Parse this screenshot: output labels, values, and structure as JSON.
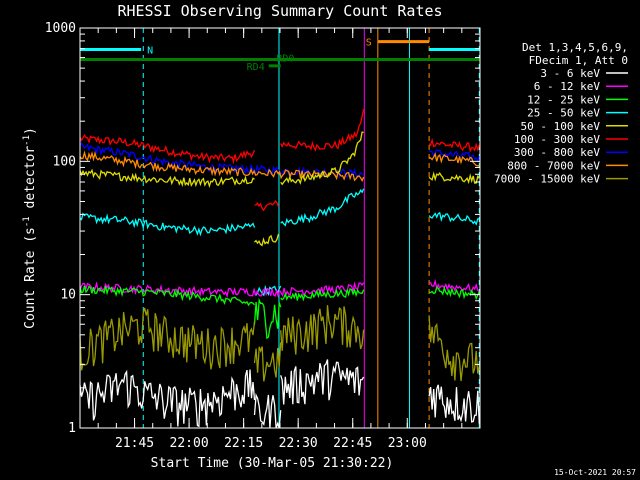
{
  "chart_data": {
    "type": "line",
    "title": "RHESSI Observing Summary Count Rates",
    "xlabel": "Start Time (30-Mar-05 21:30:22)",
    "ylabel_main": "Count Rate (s",
    "ylabel_sup1": "-1",
    "ylabel_mid": " detector",
    "ylabel_sup2": "-1",
    "ylabel_end": ")",
    "y_scale": "log",
    "ylim": [
      1,
      1000
    ],
    "xlim": [
      21.5,
      23.3333
    ],
    "yticks": [
      {
        "value": 1,
        "label": "1"
      },
      {
        "value": 10,
        "label": "10"
      },
      {
        "value": 100,
        "label": "100"
      },
      {
        "value": 1000,
        "label": "1000"
      }
    ],
    "xticks": [
      {
        "value": 21.75,
        "label": "21:45"
      },
      {
        "value": 22.0,
        "label": "22:00"
      },
      {
        "value": 22.25,
        "label": "22:15"
      },
      {
        "value": 22.5,
        "label": "22:30"
      },
      {
        "value": 22.75,
        "label": "22:45"
      },
      {
        "value": 23.0,
        "label": "23:00"
      }
    ],
    "legend_header": [
      "Det 1,3,4,5,6,9,",
      "FDecim 1, Att 0"
    ],
    "legend_position": "right",
    "timestamp": "15-Oct-2021 20:57",
    "series": [
      {
        "name": "3 - 6 keV",
        "color": "#ffffff"
      },
      {
        "name": "6 - 12 keV",
        "color": "#ff00ff"
      },
      {
        "name": "12 - 25 keV",
        "color": "#00ff00"
      },
      {
        "name": "25 - 50 keV",
        "color": "#00ffff"
      },
      {
        "name": "50 - 100 keV",
        "color": "#dddd00"
      },
      {
        "name": "100 - 300 keV",
        "color": "#ff0000"
      },
      {
        "name": "300 - 800 keV",
        "color": "#0000ff"
      },
      {
        "name": "800 - 7000 keV",
        "color": "#ff8c00"
      },
      {
        "name": "7000 - 15000 keV",
        "color": "#999900"
      }
    ],
    "curves": [
      {
        "color": "#ff0000",
        "segments": [
          {
            "x": [
              21.5,
              21.7,
              21.9,
              22.05,
              22.2,
              22.3
            ],
            "y": [
              148,
              140,
              120,
              108,
              105,
              118
            ]
          },
          {
            "x": [
              22.3,
              22.41
            ],
            "y": [
              45,
              48
            ]
          },
          {
            "x": [
              22.42,
              22.55,
              22.68,
              22.77,
              22.79,
              22.8
            ],
            "y": [
              135,
              130,
              132,
              160,
              200,
              240
            ]
          },
          {
            "x": [
              23.1,
              23.2,
              23.3,
              23.33
            ],
            "y": [
              140,
              132,
              128,
              125
            ]
          }
        ]
      },
      {
        "color": "#0000ff",
        "segments": [
          {
            "x": [
              21.5,
              21.7,
              21.9,
              22.1,
              22.3,
              22.5,
              22.7,
              22.8
            ],
            "y": [
              128,
              115,
              98,
              90,
              87,
              84,
              82,
              80
            ]
          },
          {
            "x": [
              23.1,
              23.2,
              23.3,
              23.33
            ],
            "y": [
              118,
              112,
              108,
              105
            ]
          }
        ]
      },
      {
        "color": "#ff8c00",
        "segments": [
          {
            "x": [
              21.5,
              21.7,
              21.9,
              22.1,
              22.3,
              22.5,
              22.7,
              22.8
            ],
            "y": [
              112,
              100,
              90,
              85,
              82,
              80,
              78,
              76
            ]
          },
          {
            "x": [
              23.1,
              23.2,
              23.3,
              23.33
            ],
            "y": [
              108,
              104,
              100,
              98
            ]
          }
        ]
      },
      {
        "color": "#dddd00",
        "segments": [
          {
            "x": [
              21.5,
              21.7,
              21.9,
              22.1,
              22.3
            ],
            "y": [
              82,
              77,
              72,
              70,
              74
            ]
          },
          {
            "x": [
              22.3,
              22.41
            ],
            "y": [
              24,
              27
            ]
          },
          {
            "x": [
              22.42,
              22.55,
              22.68,
              22.75,
              22.79,
              22.8
            ],
            "y": [
              70,
              75,
              85,
              110,
              150,
              170
            ]
          },
          {
            "x": [
              23.1,
              23.2,
              23.3,
              23.33
            ],
            "y": [
              78,
              76,
              74,
              73
            ]
          }
        ]
      },
      {
        "color": "#00ffff",
        "segments": [
          {
            "x": [
              21.5,
              21.7,
              21.9,
              22.1,
              22.3
            ],
            "y": [
              38,
              36,
              32,
              30,
              33
            ]
          },
          {
            "x": [
              22.3,
              22.42
            ],
            "y": [
              10.5,
              11
            ]
          },
          {
            "x": [
              22.42,
              22.55,
              22.68,
              22.75,
              22.79,
              22.8
            ],
            "y": [
              34,
              38,
              45,
              55,
              58,
              60
            ]
          },
          {
            "x": [
              23.1,
              23.2,
              23.3,
              23.33
            ],
            "y": [
              40,
              38,
              36,
              35
            ]
          }
        ]
      },
      {
        "color": "#ff00ff",
        "segments": [
          {
            "x": [
              21.5,
              21.8,
              22.1,
              22.4,
              22.7,
              22.8
            ],
            "y": [
              11.5,
              11,
              10.5,
              10.5,
              11,
              11.5
            ]
          },
          {
            "x": [
              23.1,
              23.2,
              23.33
            ],
            "y": [
              12,
              11.5,
              11
            ]
          }
        ]
      },
      {
        "color": "#00ff00",
        "segments": [
          {
            "x": [
              21.5,
              21.8,
              22.1,
              22.3
            ],
            "y": [
              11,
              10.5,
              9.5,
              8.5
            ]
          },
          {
            "x": [
              22.3,
              22.42
            ],
            "y": [
              7,
              7.5
            ]
          },
          {
            "x": [
              22.42,
              22.6,
              22.8
            ],
            "y": [
              9.5,
              10,
              10.5
            ]
          },
          {
            "x": [
              23.1,
              23.2,
              23.33
            ],
            "y": [
              11,
              10.5,
              10
            ]
          }
        ]
      },
      {
        "color": "#999900",
        "segments": [
          {
            "x": [
              21.5,
              21.6,
              21.7,
              21.8,
              21.9,
              22.0,
              22.1,
              22.2,
              22.3
            ],
            "y": [
              3.8,
              4.6,
              5.5,
              6,
              5,
              4.5,
              4.2,
              4.5,
              4.8
            ]
          },
          {
            "x": [
              22.3,
              22.42
            ],
            "y": [
              3,
              3.3
            ]
          },
          {
            "x": [
              22.42,
              22.55,
              22.65,
              22.8
            ],
            "y": [
              5,
              5.5,
              6.5,
              5.5
            ]
          },
          {
            "x": [
              23.1,
              23.2,
              23.33
            ],
            "y": [
              5.5,
              3.5,
              3.2
            ]
          }
        ]
      },
      {
        "color": "#ffffff",
        "segments": [
          {
            "x": [
              21.5,
              21.6,
              21.7,
              21.8,
              21.9,
              22.0,
              22.1,
              22.2,
              22.3
            ],
            "y": [
              1.6,
              1.8,
              2.2,
              1.8,
              1.6,
              1.5,
              1.6,
              1.9,
              2.1
            ]
          },
          {
            "x": [
              22.3,
              22.42
            ],
            "y": [
              1.3,
              1.4
            ]
          },
          {
            "x": [
              22.42,
              22.55,
              22.65,
              22.8
            ],
            "y": [
              2.0,
              2.3,
              2.5,
              2.2
            ]
          },
          {
            "x": [
              23.1,
              23.2,
              23.33
            ],
            "y": [
              1.9,
              1.6,
              1.5
            ]
          }
        ]
      }
    ],
    "vlines": [
      {
        "x": 21.5,
        "color": "#00ffff",
        "style": "solid"
      },
      {
        "x": 21.79,
        "color": "#00ffff",
        "style": "dashed"
      },
      {
        "x": 22.412,
        "color": "#00ffff",
        "style": "solid"
      },
      {
        "x": 22.803,
        "color": "#ff00ff",
        "style": "solid"
      },
      {
        "x": 22.865,
        "color": "#ff8c00",
        "style": "solid"
      },
      {
        "x": 23.01,
        "color": "#00ffff",
        "style": "solid"
      },
      {
        "x": 23.1,
        "color": "#ff8c00",
        "style": "dashed"
      },
      {
        "x": 23.33,
        "color": "#00ffff",
        "style": "dashed"
      }
    ],
    "bars": [
      {
        "label": "N",
        "color": "#00ffff",
        "y": 690,
        "segments": [
          [
            21.5,
            21.78
          ],
          [
            23.1,
            23.333
          ]
        ]
      },
      {
        "label": "S",
        "color": "#ff8c00",
        "y": 790,
        "segments": [
          [
            22.865,
            23.1
          ]
        ]
      },
      {
        "label": "RD0",
        "color": "#008000",
        "y": 580,
        "segments": [
          [
            21.5,
            23.333
          ]
        ]
      },
      {
        "label": "RD4",
        "color": "#008000",
        "y": 520,
        "segments": [
          [
            22.365,
            22.42
          ]
        ]
      }
    ]
  }
}
